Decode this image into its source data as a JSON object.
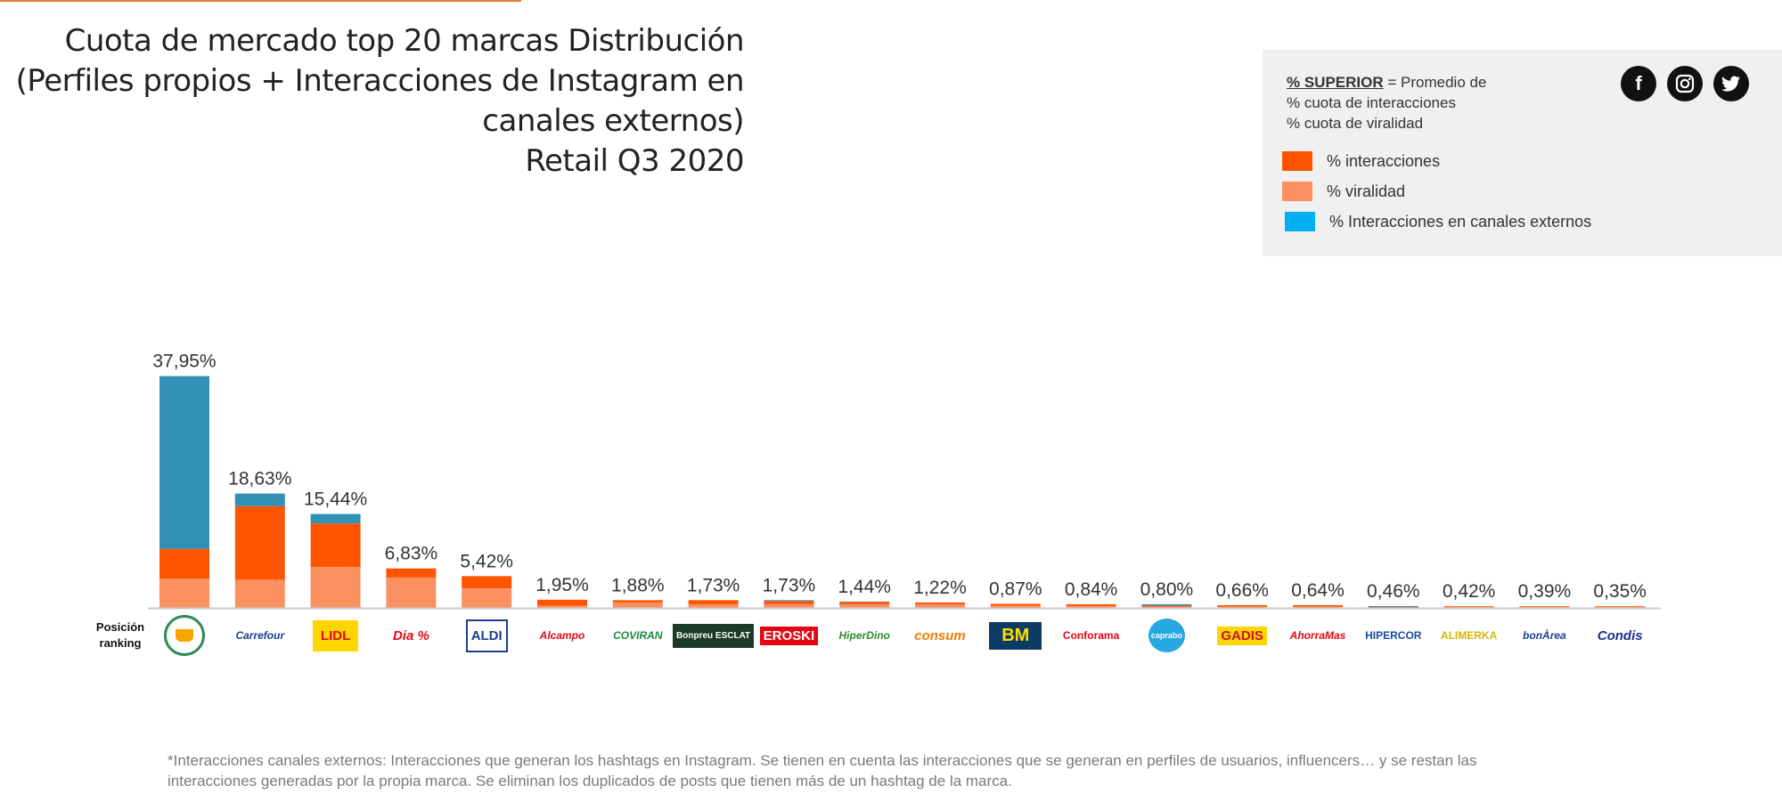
{
  "title_lines": [
    "Cuota de mercado top 20 marcas Distribución",
    "(Perfiles propios + Interacciones de Instagram en",
    "canales externos)",
    "Retail Q3 2020"
  ],
  "legend": {
    "note_bold": "% SUPERIOR",
    "note_rest": " = Promedio de",
    "note_line2": "% cuota de interacciones",
    "note_line3": "% cuota de viralidad",
    "items": [
      {
        "label": "% interacciones",
        "color": "#ff5500"
      },
      {
        "label": "% viralidad",
        "color": "#fb9160"
      },
      {
        "label": "% Interacciones en canales externos",
        "color": "#00b0f0"
      }
    ],
    "social_icons": [
      "facebook-icon",
      "instagram-icon",
      "twitter-icon"
    ]
  },
  "rank_label": [
    "Posición",
    "ranking"
  ],
  "footnote_lines": [
    "*Interacciones canales externos: Interacciones que generan los hashtags en Instagram. Se tienen en cuenta las interacciones que se generan en perfiles de usuarios, influencers… y se restan las",
    "interacciones generadas por la propia marca. Se eliminan los duplicados de posts que tienen más de un hashtag de la marca."
  ],
  "logos": [
    {
      "text": "🧺",
      "color": "#2e8b57"
    },
    {
      "text": "Carrefour",
      "color": "#1a3f91"
    },
    {
      "text": "LIDL",
      "color": "#ffd500"
    },
    {
      "text": "Dia %",
      "color": "#e30613"
    },
    {
      "text": "ALDI",
      "color": "#e30613"
    },
    {
      "text": "Alcampo",
      "color": "#e30613"
    },
    {
      "text": "COVIRAN",
      "color": "#1b8a3a"
    },
    {
      "text": "Bonpreu ESCLAT",
      "color": "#ffffff"
    },
    {
      "text": "EROSKI",
      "color": "#e30613"
    },
    {
      "text": "HiperDino",
      "color": "#2e8b2e"
    },
    {
      "text": "consum",
      "color": "#f07d00"
    },
    {
      "text": "BM",
      "color": "#ffde00"
    },
    {
      "text": "Conforama",
      "color": "#e30613"
    },
    {
      "text": "caprabo",
      "color": "#ffffff"
    },
    {
      "text": "GADIS",
      "color": "#e30613"
    },
    {
      "text": "AhorraMas",
      "color": "#e30613"
    },
    {
      "text": "HIPERCOR",
      "color": "#1a4aa0"
    },
    {
      "text": "ALIMERKA",
      "color": "#d6b400"
    },
    {
      "text": "bonÀrea",
      "color": "#1f3f8f"
    },
    {
      "text": "Condis",
      "color": "#1a2f8f"
    }
  ],
  "chart_data": {
    "type": "bar",
    "stacked": true,
    "categories": [
      "Mercadona",
      "Carrefour",
      "Lidl",
      "Dia",
      "Aldi",
      "Alcampo",
      "Covirán",
      "Bonpreu Esclat",
      "Eroski",
      "HiperDino",
      "Consum",
      "BM",
      "Conforama",
      "Caprabo",
      "Gadis",
      "AhorraMás",
      "Hipercor",
      "Alimerka",
      "bonÀrea",
      "Condis"
    ],
    "series": [
      {
        "name": "% viralidad",
        "color": "#fb9160",
        "values": [
          6.4,
          6.2,
          9.0,
          6.7,
          4.3,
          0.5,
          1.2,
          0.8,
          0.8,
          0.8,
          0.8,
          0.5,
          0.4,
          0.3,
          0.3,
          0.3,
          0.0,
          0.3,
          0.3,
          0.3
        ]
      },
      {
        "name": "% interacciones",
        "color": "#ff5500",
        "values": [
          6.6,
          16.2,
          9.6,
          2.0,
          2.7,
          1.3,
          0.5,
          0.9,
          0.7,
          0.5,
          0.4,
          0.4,
          0.4,
          0.2,
          0.3,
          0.3,
          0.2,
          0.1,
          0.1,
          0.1
        ]
      },
      {
        "name": "% Interacciones en canales externos",
        "color": "#3390b4",
        "values": [
          38.1,
          2.8,
          2.1,
          0.0,
          0.0,
          0.0,
          0.0,
          0.0,
          0.2,
          0.1,
          0.0,
          0.0,
          0.0,
          0.3,
          0.0,
          0.0,
          0.2,
          0.0,
          0.0,
          0.0
        ]
      }
    ],
    "data_labels": [
      "37,95%",
      "18,63%",
      "15,44%",
      "6,83%",
      "5,42%",
      "1,95%",
      "1,88%",
      "1,73%",
      "1,73%",
      "1,44%",
      "1,22%",
      "0,87%",
      "0,84%",
      "0,80%",
      "0,66%",
      "0,64%",
      "0,46%",
      "0,42%",
      "0,39%",
      "0,35%"
    ],
    "ylim": [
      0,
      52
    ]
  }
}
